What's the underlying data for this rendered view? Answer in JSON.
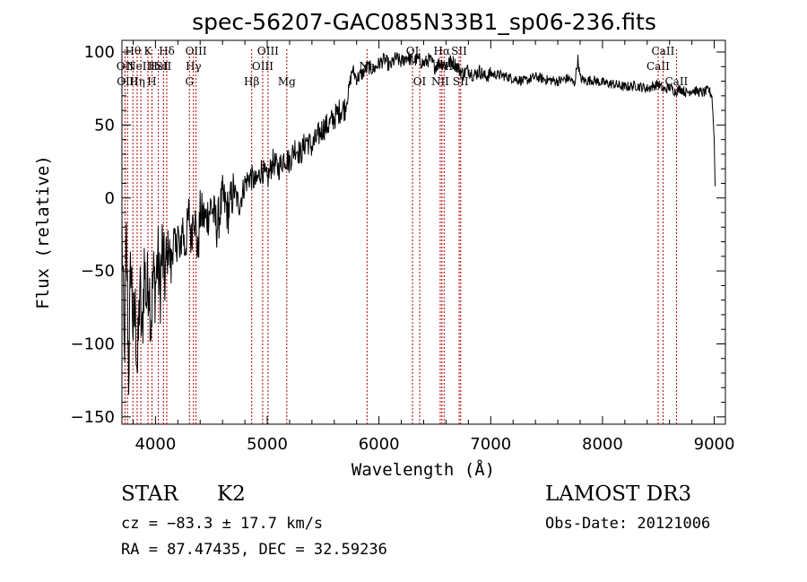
{
  "chart_data": {
    "type": "line",
    "title": "spec-56207-GAC085N33B1_sp06-236.fits",
    "xlabel": "Wavelength (Å)",
    "ylabel": "Flux (relative)",
    "xlim": [
      3700,
      9100
    ],
    "ylim": [
      -155,
      108
    ],
    "xticks": [
      4000,
      5000,
      6000,
      7000,
      8000,
      9000
    ],
    "xtick_labels": [
      "4000",
      "5000",
      "6000",
      "7000",
      "8000",
      "9000"
    ],
    "yticks": [
      -150,
      -100,
      -50,
      0,
      50,
      100
    ],
    "ytick_labels": [
      "−150",
      "−100",
      "−50",
      "0",
      "50",
      "100"
    ],
    "grid": false,
    "line_color": "#000000",
    "marker_color": "#b00000",
    "series": [
      {
        "name": "flux",
        "x": [
          3700,
          3720,
          3740,
          3760,
          3780,
          3800,
          3820,
          3840,
          3860,
          3880,
          3900,
          3920,
          3940,
          3960,
          3980,
          4000,
          4020,
          4040,
          4060,
          4080,
          4100,
          4120,
          4140,
          4160,
          4180,
          4200,
          4220,
          4240,
          4260,
          4280,
          4300,
          4320,
          4340,
          4360,
          4380,
          4400,
          4450,
          4500,
          4550,
          4600,
          4650,
          4700,
          4750,
          4800,
          4850,
          4900,
          4950,
          5000,
          5050,
          5100,
          5150,
          5200,
          5250,
          5300,
          5350,
          5400,
          5450,
          5500,
          5550,
          5600,
          5650,
          5700,
          5720,
          5740,
          5760,
          5780,
          5800,
          5850,
          5900,
          5950,
          6000,
          6050,
          6100,
          6150,
          6200,
          6250,
          6300,
          6350,
          6400,
          6450,
          6500,
          6550,
          6600,
          6650,
          6700,
          6750,
          6800,
          6850,
          6900,
          6950,
          7000,
          7100,
          7200,
          7300,
          7400,
          7500,
          7600,
          7700,
          7750,
          7780,
          7800,
          7850,
          7900,
          8000,
          8100,
          8200,
          8300,
          8400,
          8500,
          8550,
          8600,
          8650,
          8700,
          8750,
          8800,
          8850,
          8900,
          8950,
          8980,
          9000,
          9010
        ],
        "values": [
          -20,
          -110,
          -30,
          -120,
          -40,
          -90,
          -80,
          -120,
          -60,
          -100,
          -45,
          -70,
          -50,
          -85,
          -55,
          -60,
          -40,
          -65,
          -35,
          -55,
          -45,
          -30,
          -50,
          -25,
          -40,
          -20,
          -45,
          -15,
          -35,
          -25,
          -10,
          -30,
          -5,
          -20,
          -40,
          -10,
          -15,
          -5,
          -20,
          0,
          -10,
          5,
          -5,
          10,
          15,
          10,
          20,
          12,
          25,
          20,
          28,
          25,
          35,
          30,
          40,
          35,
          42,
          48,
          50,
          55,
          60,
          62,
          70,
          78,
          88,
          85,
          82,
          85,
          90,
          88,
          92,
          95,
          90,
          96,
          93,
          97,
          94,
          95,
          92,
          95,
          90,
          93,
          91,
          94,
          90,
          85,
          88,
          84,
          87,
          83,
          85,
          84,
          82,
          80,
          83,
          81,
          80,
          82,
          78,
          95,
          82,
          80,
          81,
          79,
          78,
          76,
          77,
          75,
          78,
          74,
          76,
          73,
          75,
          72,
          74,
          73,
          72,
          74,
          70,
          40,
          0
        ]
      }
    ],
    "line_markers": [
      {
        "w": 3727,
        "label": "OII",
        "row": 1
      },
      {
        "w": 3750,
        "label": "OIII",
        "row": 2
      },
      {
        "w": 3798,
        "label": "Hθ",
        "row": 0
      },
      {
        "w": 3836,
        "label": "Hη",
        "row": 2
      },
      {
        "w": 3869,
        "label": "NeIII",
        "row": 1
      },
      {
        "w": 3933,
        "label": "K",
        "row": 0
      },
      {
        "w": 3968,
        "label": "H",
        "row": 2
      },
      {
        "w": 4026,
        "label": "HeI",
        "row": 1
      },
      {
        "w": 4101,
        "label": "Hδ",
        "row": 0
      },
      {
        "w": 4072,
        "label": "SII",
        "row": 1
      },
      {
        "w": 4304,
        "label": "G",
        "row": 2
      },
      {
        "w": 4340,
        "label": "Hγ",
        "row": 1
      },
      {
        "w": 4363,
        "label": "OIII",
        "row": 0
      },
      {
        "w": 4861,
        "label": "Hβ",
        "row": 2
      },
      {
        "w": 4959,
        "label": "OIII",
        "row": 1
      },
      {
        "w": 5007,
        "label": "OIII",
        "row": 0
      },
      {
        "w": 5175,
        "label": "Mg",
        "row": 2
      },
      {
        "w": 5893,
        "label": "Na",
        "row": 1
      },
      {
        "w": 6300,
        "label": "OI",
        "row": 0
      },
      {
        "w": 6364,
        "label": "OI",
        "row": 2
      },
      {
        "w": 6548,
        "label": "NII",
        "row": 2
      },
      {
        "w": 6563,
        "label": "Hα",
        "row": 0
      },
      {
        "w": 6583,
        "label": "NII",
        "row": 1
      },
      {
        "w": 6717,
        "label": "SII",
        "row": 0
      },
      {
        "w": 6731,
        "label": "SII",
        "row": 2
      },
      {
        "w": 8498,
        "label": "CaII",
        "row": 1
      },
      {
        "w": 8542,
        "label": "CaII",
        "row": 0
      },
      {
        "w": 8662,
        "label": "CaII",
        "row": 2
      }
    ]
  },
  "info": {
    "object_class": "STAR",
    "subclass": "K2",
    "survey": "LAMOST DR3",
    "cz_line": "cz = −83.3 ± 17.7 km/s",
    "obs_date": "Obs-Date: 20121006",
    "radec_line": "RA =  87.47435, DEC =  32.59236"
  }
}
